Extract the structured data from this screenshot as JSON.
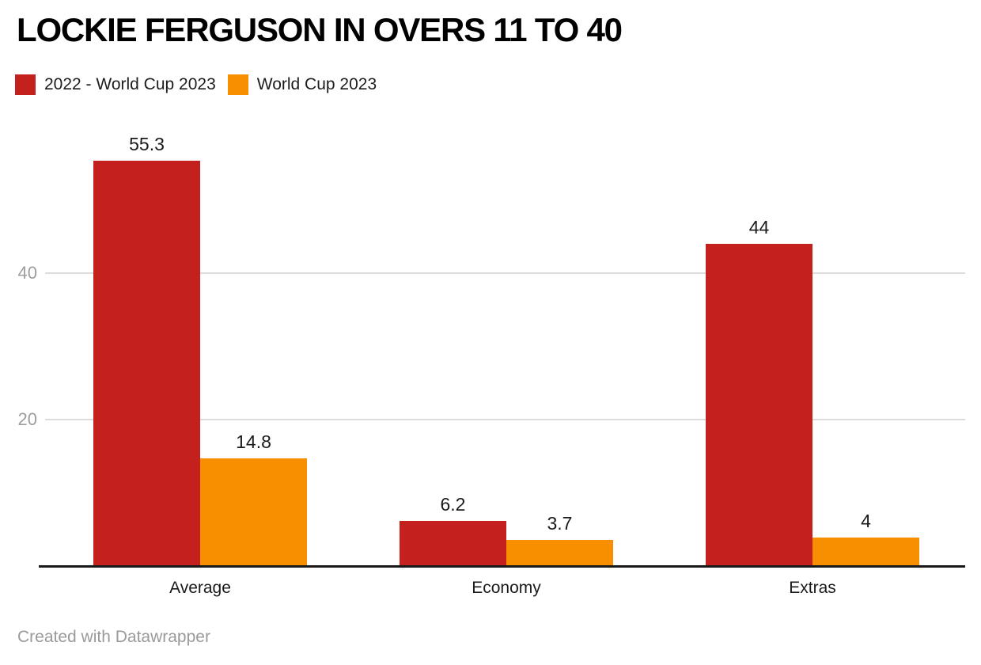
{
  "title": "LOCKIE FERGUSON IN OVERS 11 TO 40",
  "legend": [
    {
      "label": "2022 - World Cup 2023",
      "color": "#c4201d"
    },
    {
      "label": "World Cup 2023",
      "color": "#f88f00"
    }
  ],
  "footer": {
    "credit": "Created with Datawrapper"
  },
  "colors": {
    "series_red": "#c4201d",
    "series_orange": "#f88f00",
    "gridline": "#dcdcdc",
    "axis_line": "#191919",
    "tick_label": "#9d9d9d",
    "text": "#1a1a1a"
  },
  "chart_data": {
    "type": "bar",
    "title": "LOCKIE FERGUSON IN OVERS 11 TO 40",
    "categories": [
      "Average",
      "Economy",
      "Extras"
    ],
    "series": [
      {
        "name": "2022 - World Cup 2023",
        "color": "#c4201d",
        "values": [
          55.3,
          6.2,
          44
        ],
        "labels": [
          "55.3",
          "6.2",
          "44"
        ]
      },
      {
        "name": "World Cup 2023",
        "color": "#f88f00",
        "values": [
          14.8,
          3.7,
          4
        ],
        "labels": [
          "14.8",
          "3.7",
          "4"
        ]
      }
    ],
    "xlabel": "",
    "ylabel": "",
    "ylim": [
      0,
      61
    ],
    "yticks": [
      {
        "value": 20,
        "label": "20"
      },
      {
        "value": 40,
        "label": "40"
      }
    ],
    "grid": true,
    "legend_position": "top-left",
    "value_labels_shown": true
  }
}
